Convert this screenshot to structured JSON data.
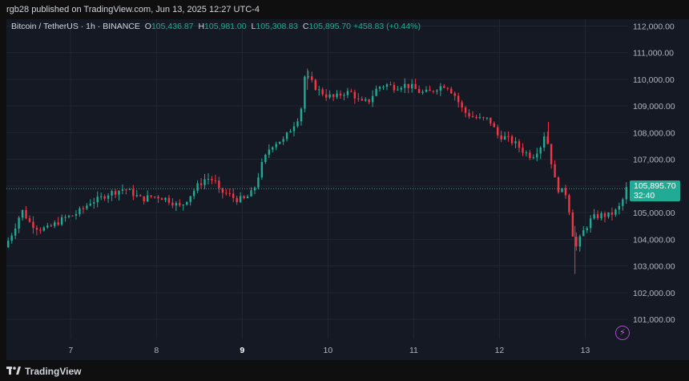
{
  "header": {
    "published_text": "rgb28 published on TradingView.com, Jun 13, 2025 12:27 UTC-4"
  },
  "symbol": {
    "name": "Bitcoin / TetherUS · 1h · BINANCE",
    "o_label": "O",
    "o_value": "105,436.87",
    "h_label": "H",
    "h_value": "105,981.00",
    "l_label": "L",
    "l_value": "105,308.83",
    "c_label": "C",
    "c_value": "105,895.70",
    "change": "+458.83 (+0.44%)"
  },
  "last_price": {
    "value": "105,895.70",
    "countdown": "32:40"
  },
  "footer": {
    "brand": "TradingView"
  },
  "colors": {
    "up": "#22ab94",
    "down": "#f23645",
    "background": "#151924",
    "grid": "#232632",
    "text": "#b2b5be"
  },
  "chart_data": {
    "type": "candlestick",
    "y_axis": {
      "ticks": [
        101000,
        102000,
        103000,
        104000,
        105000,
        106000,
        107000,
        108000,
        109000,
        110000,
        111000,
        112000
      ],
      "tick_labels": [
        "101,000.00",
        "102,000.00",
        "103,000.00",
        "104,000.00",
        "105,000.00",
        "106,000.00",
        "107,000.00",
        "108,000.00",
        "109,000.00",
        "110,000.00",
        "111,000.00",
        "112,000.00"
      ],
      "range": [
        100250,
        112250
      ]
    },
    "x_axis": {
      "ticks": [
        7,
        8,
        9,
        10,
        11,
        12,
        13
      ],
      "tick_labels": [
        "7",
        "8",
        "9",
        "10",
        "11",
        "12",
        "13"
      ],
      "bold_ticks": [
        "9"
      ],
      "range": [
        6.25,
        13.5
      ]
    },
    "last_close": 105895.7,
    "path_points": [
      [
        6.25,
        103700
      ],
      [
        6.35,
        104300
      ],
      [
        6.45,
        105100
      ],
      [
        6.55,
        104600
      ],
      [
        6.65,
        104400
      ],
      [
        6.75,
        104400
      ],
      [
        6.85,
        104600
      ],
      [
        6.95,
        104800
      ],
      [
        7.05,
        104900
      ],
      [
        7.15,
        105100
      ],
      [
        7.25,
        105400
      ],
      [
        7.35,
        105500
      ],
      [
        7.45,
        105700
      ],
      [
        7.55,
        105800
      ],
      [
        7.65,
        105900
      ],
      [
        7.75,
        105700
      ],
      [
        7.85,
        105500
      ],
      [
        7.95,
        105600
      ],
      [
        8.05,
        105600
      ],
      [
        8.15,
        105500
      ],
      [
        8.25,
        105300
      ],
      [
        8.3,
        105200
      ],
      [
        8.4,
        105600
      ],
      [
        8.5,
        106000
      ],
      [
        8.6,
        106300
      ],
      [
        8.7,
        106200
      ],
      [
        8.75,
        105800
      ],
      [
        8.85,
        105700
      ],
      [
        8.95,
        105500
      ],
      [
        9.05,
        105500
      ],
      [
        9.15,
        105800
      ],
      [
        9.25,
        106800
      ],
      [
        9.35,
        107500
      ],
      [
        9.45,
        107700
      ],
      [
        9.5,
        107700
      ],
      [
        9.6,
        108200
      ],
      [
        9.7,
        108700
      ],
      [
        9.75,
        110100
      ],
      [
        9.8,
        110000
      ],
      [
        9.9,
        109600
      ],
      [
        10.0,
        109400
      ],
      [
        10.1,
        109300
      ],
      [
        10.2,
        109500
      ],
      [
        10.3,
        109500
      ],
      [
        10.4,
        109100
      ],
      [
        10.5,
        109200
      ],
      [
        10.6,
        109700
      ],
      [
        10.7,
        109800
      ],
      [
        10.8,
        109700
      ],
      [
        10.9,
        109800
      ],
      [
        11.0,
        109700
      ],
      [
        11.1,
        109500
      ],
      [
        11.2,
        109500
      ],
      [
        11.3,
        109700
      ],
      [
        11.4,
        109800
      ],
      [
        11.5,
        109400
      ],
      [
        11.6,
        108800
      ],
      [
        11.7,
        108600
      ],
      [
        11.8,
        108500
      ],
      [
        11.9,
        108500
      ],
      [
        12.0,
        107900
      ],
      [
        12.1,
        107800
      ],
      [
        12.2,
        107600
      ],
      [
        12.3,
        107300
      ],
      [
        12.4,
        107100
      ],
      [
        12.5,
        107500
      ],
      [
        12.55,
        108000
      ],
      [
        12.6,
        107400
      ],
      [
        12.65,
        106400
      ],
      [
        12.7,
        105900
      ],
      [
        12.8,
        105700
      ],
      [
        12.85,
        104800
      ],
      [
        12.9,
        103600
      ],
      [
        13.0,
        104300
      ],
      [
        13.1,
        104800
      ],
      [
        13.2,
        104900
      ],
      [
        13.3,
        104900
      ],
      [
        13.4,
        105100
      ],
      [
        13.45,
        105400
      ],
      [
        13.5,
        105900
      ]
    ]
  }
}
